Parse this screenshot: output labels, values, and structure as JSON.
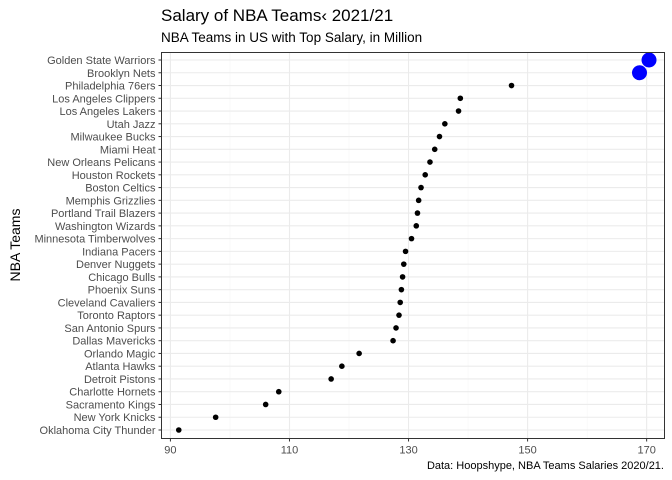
{
  "chart_data": {
    "type": "scatter",
    "title": "Salary of NBA Teams‹ 2021/21",
    "subtitle": "NBA Teams in US with Top Salary, in Million",
    "caption": "Data: Hoopshype, NBA Teams Salaries 2020/21.",
    "xlabel": "",
    "ylabel": "NBA Teams",
    "xlim": [
      88.5,
      173
    ],
    "xticks": [
      90,
      110,
      130,
      150,
      170
    ],
    "grid": true,
    "legend": "none",
    "colors": {
      "default_point": "#000000",
      "highlight_point": "#0000FF",
      "panel_border": "#333333",
      "grid_major": "#ebebeb",
      "grid_minor": "#f5f5f5"
    },
    "categories": [
      "Golden State Warriors",
      "Brooklyn Nets",
      "Philadelphia 76ers",
      "Los Angeles Clippers",
      "Los Angeles Lakers",
      "Utah Jazz",
      "Milwaukee Bucks",
      "Miami Heat",
      "New Orleans Pelicans",
      "Houston Rockets",
      "Boston Celtics",
      "Memphis Grizzlies",
      "Portland Trail Blazers",
      "Washington Wizards",
      "Minnesota Timberwolves",
      "Indiana Pacers",
      "Denver Nuggets",
      "Chicago Bulls",
      "Phoenix Suns",
      "Cleveland Cavaliers",
      "Toronto Raptors",
      "San Antonio Spurs",
      "Dallas Mavericks",
      "Orlando Magic",
      "Atlanta Hawks",
      "Detroit Pistons",
      "Charlotte Hornets",
      "Sacramento Kings",
      "New York Knicks",
      "Oklahoma City Thunder"
    ],
    "values": [
      170.4,
      168.8,
      147.3,
      138.7,
      138.4,
      136.1,
      135.2,
      134.4,
      133.6,
      132.8,
      132.1,
      131.7,
      131.5,
      131.3,
      130.5,
      129.5,
      129.2,
      129.0,
      128.8,
      128.6,
      128.4,
      127.9,
      127.4,
      121.7,
      118.8,
      117.0,
      108.2,
      106.0,
      97.6,
      91.4
    ],
    "highlighted": [
      "Golden State Warriors",
      "Brooklyn Nets"
    ]
  }
}
